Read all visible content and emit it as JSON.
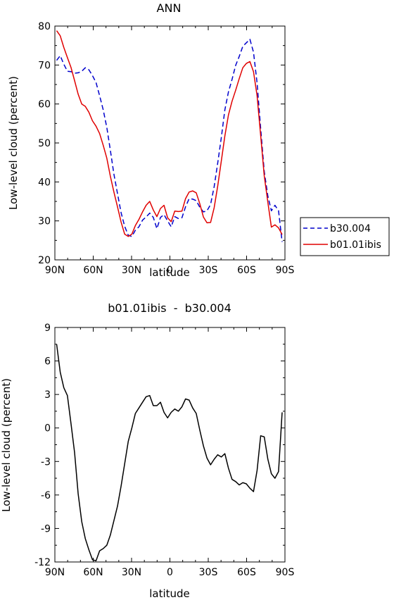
{
  "chart_data": [
    {
      "type": "line",
      "title": "ANN",
      "xlabel": "latitude",
      "ylabel": "Low-level cloud (percent)",
      "xlim": [
        90,
        -90
      ],
      "ylim": [
        20,
        80
      ],
      "xticks": [
        90,
        60,
        30,
        0,
        -30,
        -60,
        -90
      ],
      "xtick_labels": [
        "90N",
        "60N",
        "30N",
        "0",
        "30S",
        "60S",
        "90S"
      ],
      "yticks": [
        20,
        30,
        40,
        50,
        60,
        70,
        80
      ],
      "ytick_labels": [
        "20",
        "30",
        "40",
        "50",
        "60",
        "70",
        "80"
      ],
      "legend_position": "right",
      "x": [
        88.6,
        85.8,
        83.0,
        80.2,
        77.4,
        74.6,
        71.8,
        69.0,
        66.2,
        63.4,
        60.6,
        57.8,
        55.0,
        52.2,
        49.4,
        46.6,
        43.8,
        41.0,
        38.2,
        35.4,
        32.6,
        29.8,
        27.0,
        24.2,
        21.4,
        18.6,
        15.8,
        13.0,
        10.2,
        7.4,
        4.6,
        1.8,
        -1.0,
        -3.8,
        -6.6,
        -9.4,
        -12.2,
        -15.0,
        -17.8,
        -20.6,
        -23.4,
        -26.2,
        -29.0,
        -31.8,
        -34.6,
        -37.4,
        -40.2,
        -43.0,
        -45.8,
        -48.6,
        -51.4,
        -54.2,
        -57.0,
        -59.8,
        -62.6,
        -65.4,
        -68.2,
        -71.0,
        -73.8,
        -76.6,
        -79.4,
        -82.2,
        -85.0,
        -87.8
      ],
      "series": [
        {
          "name": "b30.004",
          "color": "#0000cc",
          "dash": "dashed",
          "values": [
            71.2,
            72.4,
            70.2,
            68.4,
            68.3,
            67.9,
            68.0,
            68.4,
            69.3,
            68.8,
            67.3,
            65.5,
            62.1,
            58.5,
            54.0,
            48.2,
            42.0,
            37.0,
            32.1,
            28.6,
            26.3,
            26.0,
            27.6,
            28.5,
            30.2,
            31.0,
            32.0,
            30.9,
            28.0,
            30.9,
            31.6,
            30.0,
            28.5,
            31.1,
            30.6,
            30.8,
            33.6,
            35.7,
            35.6,
            35.2,
            33.5,
            32.3,
            32.6,
            34.2,
            38.8,
            44.8,
            51.3,
            58.5,
            63.1,
            66.3,
            69.9,
            72.2,
            74.8,
            75.7,
            76.6,
            73.3,
            65.4,
            53.7,
            42.6,
            36.4,
            32.6,
            34.0,
            32.6,
            24.6
          ]
        },
        {
          "name": "b01.01ibis",
          "color": "#e00000",
          "dash": "solid",
          "values": [
            78.8,
            77.5,
            74.5,
            71.9,
            69.4,
            66.0,
            62.5,
            60.0,
            59.4,
            57.9,
            55.7,
            54.3,
            52.4,
            49.4,
            46.1,
            41.5,
            37.4,
            33.6,
            29.7,
            26.6,
            26.0,
            26.6,
            28.8,
            30.4,
            32.3,
            34.0,
            35.0,
            32.8,
            31.1,
            33.2,
            34.0,
            30.8,
            29.8,
            32.5,
            32.4,
            32.5,
            35.7,
            37.4,
            37.7,
            37.2,
            34.4,
            31.0,
            29.5,
            29.6,
            33.4,
            38.9,
            45.3,
            51.8,
            57.2,
            60.7,
            63.5,
            66.5,
            69.3,
            70.4,
            70.9,
            68.3,
            62.1,
            51.9,
            41.5,
            34.8,
            28.4,
            29.0,
            28.2,
            26.5
          ]
        }
      ]
    },
    {
      "type": "line",
      "title": "b01.01ibis  -  b30.004",
      "xlabel": "latitude",
      "ylabel": "Low-level cloud (percent)",
      "xlim": [
        90,
        -90
      ],
      "ylim": [
        -12,
        9
      ],
      "xticks": [
        90,
        60,
        30,
        0,
        -30,
        -60,
        -90
      ],
      "xtick_labels": [
        "90N",
        "60N",
        "30N",
        "0",
        "30S",
        "60S",
        "90S"
      ],
      "yticks": [
        -12,
        -9,
        -6,
        -3,
        0,
        3,
        6,
        9
      ],
      "ytick_labels": [
        "-12",
        "-9",
        "-6",
        "-3",
        "0",
        "3",
        "6",
        "9"
      ],
      "x": [
        88.6,
        85.8,
        83.0,
        80.2,
        77.4,
        74.6,
        71.8,
        69.0,
        66.2,
        63.4,
        60.6,
        57.8,
        55.0,
        52.2,
        49.4,
        46.6,
        43.8,
        41.0,
        38.2,
        35.4,
        32.6,
        29.8,
        27.0,
        24.2,
        21.4,
        18.6,
        15.8,
        13.0,
        10.2,
        7.4,
        4.6,
        1.8,
        -1.0,
        -3.8,
        -6.6,
        -9.4,
        -12.2,
        -15.0,
        -17.8,
        -20.6,
        -23.4,
        -26.2,
        -29.0,
        -31.8,
        -34.6,
        -37.4,
        -40.2,
        -43.0,
        -45.8,
        -48.6,
        -51.4,
        -54.2,
        -57.0,
        -59.8,
        -62.6,
        -65.4,
        -68.2,
        -71.0,
        -73.8,
        -76.6,
        -79.4,
        -82.2,
        -85.0,
        -87.8
      ],
      "series": [
        {
          "color": "#000000",
          "values": [
            7.5,
            5.0,
            3.6,
            2.9,
            0.4,
            -2.2,
            -5.9,
            -8.4,
            -9.9,
            -10.9,
            -11.8,
            -11.9,
            -11.0,
            -10.8,
            -10.5,
            -9.6,
            -8.3,
            -7.0,
            -5.2,
            -3.2,
            -1.2,
            0.0,
            1.3,
            1.8,
            2.3,
            2.8,
            2.9,
            2.0,
            2.0,
            2.3,
            1.4,
            0.9,
            1.4,
            1.7,
            1.5,
            1.9,
            2.6,
            2.5,
            1.8,
            1.3,
            -0.2,
            -1.6,
            -2.7,
            -3.3,
            -2.8,
            -2.4,
            -2.6,
            -2.3,
            -3.6,
            -4.6,
            -4.8,
            -5.1,
            -4.9,
            -5.0,
            -5.4,
            -5.7,
            -3.8,
            -0.7,
            -0.8,
            -2.8,
            -4.1,
            -4.5,
            -3.9,
            1.4
          ]
        }
      ]
    }
  ]
}
